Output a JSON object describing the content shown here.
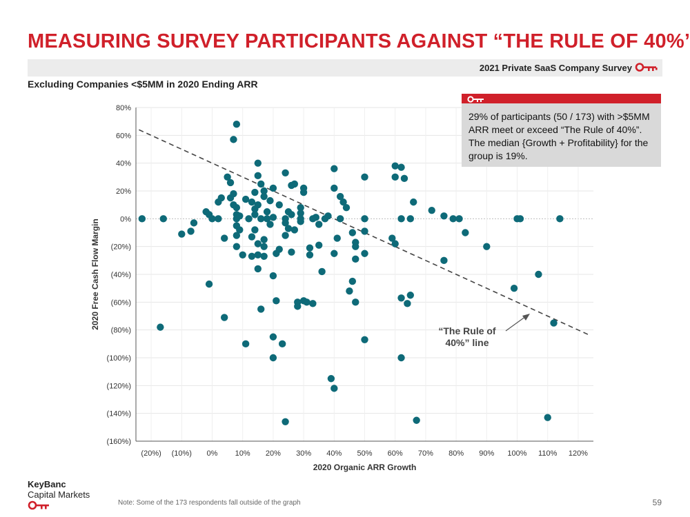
{
  "header": {
    "title": "MEASURING SURVEY PARTICIPANTS AGAINST “THE RULE OF 40%”",
    "banner_text": "2021 Private SaaS Company Survey",
    "subtitle": "Excluding Companies <$5MM in 2020 Ending ARR"
  },
  "callout": {
    "text": "29% of participants (50 / 173) with >$5MM ARR meet or exceed “The Rule of 40%”. The median {Growth + Profitability} for the group is 19%."
  },
  "footer": {
    "note": "Note: Some of the 173 respondents fall outside of the graph",
    "page_number": "59",
    "logo_line1": "KeyBanc",
    "logo_line2": "Capital Markets"
  },
  "colors": {
    "brand_red": "#d0202a",
    "point": "#0e6a78",
    "callout_bg": "#d9d9d9",
    "banner_bg": "#ececec"
  },
  "icons": {
    "key": "key-icon"
  },
  "chart_data": {
    "type": "scatter",
    "title": "",
    "xlabel": "2020 Organic ARR Growth",
    "ylabel": "2020 Free Cash Flow Margin",
    "xlim": [
      -25,
      125
    ],
    "ylim": [
      -160,
      80
    ],
    "x_ticks": [
      -20,
      -10,
      0,
      10,
      20,
      30,
      40,
      50,
      60,
      70,
      80,
      90,
      100,
      110,
      120
    ],
    "x_tick_labels": [
      "(20%)",
      "(10%)",
      "0%",
      "10%",
      "20%",
      "30%",
      "40%",
      "50%",
      "60%",
      "70%",
      "80%",
      "90%",
      "100%",
      "110%",
      "120%"
    ],
    "y_ticks": [
      80,
      60,
      40,
      20,
      0,
      -20,
      -40,
      -60,
      -80,
      -100,
      -120,
      -140,
      -160
    ],
    "y_tick_labels": [
      "80%",
      "60%",
      "40%",
      "20%",
      "0%",
      "(20%)",
      "(40%)",
      "(60%)",
      "(80%)",
      "(100%)",
      "(120%)",
      "(140%)",
      "(160%)"
    ],
    "grid": true,
    "reference_line": {
      "label": "“The Rule of 40%” line",
      "label_lines": [
        "“The Rule of",
        "40%” line"
      ],
      "x": [
        -24,
        124
      ],
      "y": [
        64,
        -84
      ]
    },
    "points": [
      [
        -23,
        0
      ],
      [
        -16,
        0
      ],
      [
        -17,
        -78
      ],
      [
        -10,
        -11
      ],
      [
        -7,
        -9
      ],
      [
        -6,
        -3
      ],
      [
        -2,
        5
      ],
      [
        -1,
        3
      ],
      [
        -1,
        -47
      ],
      [
        0,
        0
      ],
      [
        2,
        12
      ],
      [
        2,
        0
      ],
      [
        3,
        15
      ],
      [
        4,
        -14
      ],
      [
        4,
        -71
      ],
      [
        5,
        30
      ],
      [
        6,
        26
      ],
      [
        6,
        15
      ],
      [
        7,
        18
      ],
      [
        7,
        10
      ],
      [
        7,
        57
      ],
      [
        8,
        68
      ],
      [
        8,
        8
      ],
      [
        8,
        3
      ],
      [
        8,
        0
      ],
      [
        8,
        -5
      ],
      [
        8,
        -12
      ],
      [
        8,
        -20
      ],
      [
        9,
        2
      ],
      [
        9,
        -8
      ],
      [
        10,
        -26
      ],
      [
        11,
        14
      ],
      [
        11,
        -90
      ],
      [
        12,
        0
      ],
      [
        13,
        12
      ],
      [
        13,
        -13
      ],
      [
        13,
        -27
      ],
      [
        14,
        7
      ],
      [
        14,
        19
      ],
      [
        14,
        3
      ],
      [
        14,
        -8
      ],
      [
        15,
        31
      ],
      [
        15,
        40
      ],
      [
        15,
        10
      ],
      [
        15,
        -18
      ],
      [
        15,
        -36
      ],
      [
        15,
        -26
      ],
      [
        16,
        25
      ],
      [
        16,
        -65
      ],
      [
        16,
        0
      ],
      [
        17,
        20
      ],
      [
        17,
        16
      ],
      [
        17,
        -15
      ],
      [
        17,
        -20
      ],
      [
        17,
        -27
      ],
      [
        18,
        5
      ],
      [
        18,
        0
      ],
      [
        19,
        13
      ],
      [
        19,
        -4
      ],
      [
        20,
        1
      ],
      [
        20,
        22
      ],
      [
        20,
        -41
      ],
      [
        20,
        -85
      ],
      [
        20,
        -100
      ],
      [
        21,
        -25
      ],
      [
        21,
        -59
      ],
      [
        22,
        10
      ],
      [
        22,
        -22
      ],
      [
        23,
        -90
      ],
      [
        24,
        33
      ],
      [
        24,
        0
      ],
      [
        24,
        -3
      ],
      [
        24,
        -12
      ],
      [
        24,
        -146
      ],
      [
        25,
        5
      ],
      [
        25,
        -7
      ],
      [
        26,
        24
      ],
      [
        26,
        3
      ],
      [
        26,
        -24
      ],
      [
        27,
        25
      ],
      [
        27,
        -8
      ],
      [
        28,
        -60
      ],
      [
        28,
        -63
      ],
      [
        29,
        8
      ],
      [
        29,
        4
      ],
      [
        29,
        0
      ],
      [
        29,
        -2
      ],
      [
        30,
        22
      ],
      [
        30,
        19
      ],
      [
        30,
        -59
      ],
      [
        31,
        -60
      ],
      [
        32,
        -21
      ],
      [
        32,
        -26
      ],
      [
        33,
        0
      ],
      [
        33,
        -61
      ],
      [
        34,
        1
      ],
      [
        35,
        -4
      ],
      [
        35,
        -19
      ],
      [
        36,
        -38
      ],
      [
        37,
        0
      ],
      [
        38,
        2
      ],
      [
        39,
        -115
      ],
      [
        40,
        36
      ],
      [
        40,
        22
      ],
      [
        40,
        -25
      ],
      [
        40,
        -122
      ],
      [
        41,
        -14
      ],
      [
        42,
        0
      ],
      [
        42,
        16
      ],
      [
        43,
        12
      ],
      [
        44,
        8
      ],
      [
        45,
        -52
      ],
      [
        46,
        -10
      ],
      [
        46,
        -45
      ],
      [
        47,
        -17
      ],
      [
        47,
        -20
      ],
      [
        47,
        -29
      ],
      [
        47,
        -60
      ],
      [
        50,
        30
      ],
      [
        50,
        0
      ],
      [
        50,
        -9
      ],
      [
        50,
        -25
      ],
      [
        50,
        -87
      ],
      [
        59,
        -14
      ],
      [
        60,
        38
      ],
      [
        60,
        30
      ],
      [
        60,
        -18
      ],
      [
        62,
        37
      ],
      [
        62,
        0
      ],
      [
        62,
        -100
      ],
      [
        62,
        -57
      ],
      [
        63,
        29
      ],
      [
        64,
        -61
      ],
      [
        65,
        0
      ],
      [
        65,
        -55
      ],
      [
        66,
        12
      ],
      [
        67,
        -145
      ],
      [
        72,
        6
      ],
      [
        76,
        2
      ],
      [
        76,
        -30
      ],
      [
        79,
        0
      ],
      [
        81,
        0
      ],
      [
        83,
        -10
      ],
      [
        90,
        -20
      ],
      [
        99,
        -50
      ],
      [
        100,
        0
      ],
      [
        101,
        0
      ],
      [
        107,
        -40
      ],
      [
        110,
        -143
      ],
      [
        112,
        -75
      ],
      [
        114,
        0
      ]
    ]
  }
}
